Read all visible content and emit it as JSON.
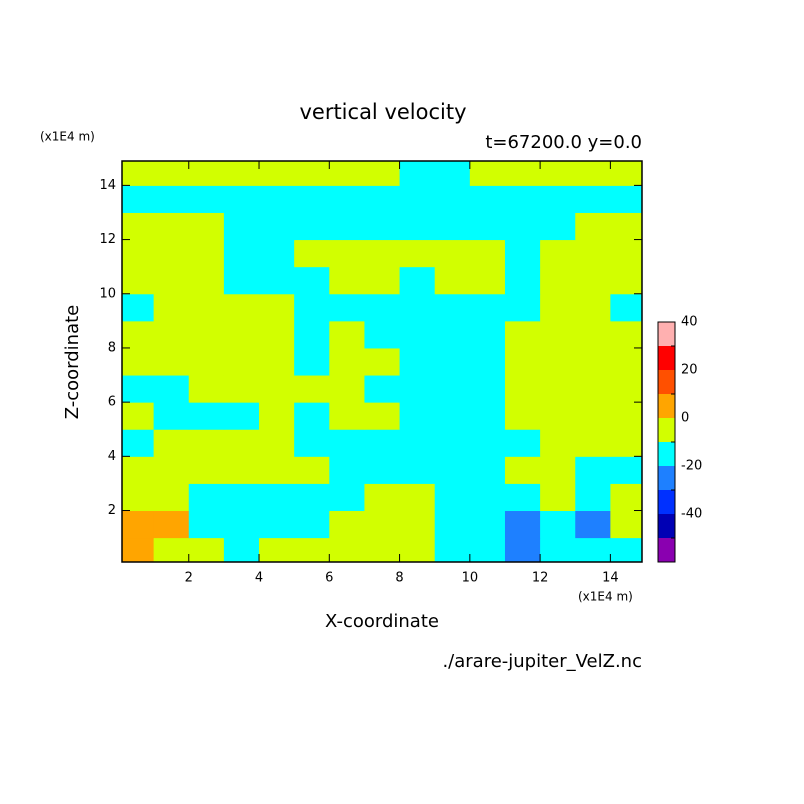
{
  "chart_data": {
    "type": "contour",
    "title": "vertical velocity",
    "subtitle": "t=67200.0 y=0.0",
    "x_label": "X-coordinate",
    "y_label": "Z-coordinate",
    "x_unit": "(x1E4 m)",
    "y_unit": "(x1E4 m)",
    "source": "./arare-jupiter_VelZ.nc",
    "xlim": [
      0.1,
      14.9
    ],
    "ylim": [
      0.1,
      14.9
    ],
    "xticks": [
      2,
      4,
      6,
      8,
      10,
      12,
      14
    ],
    "yticks": [
      2,
      4,
      6,
      8,
      10,
      12,
      14
    ],
    "x": [
      0.5,
      1.5,
      2.5,
      3.5,
      4.5,
      5.5,
      6.5,
      7.5,
      8.5,
      9.5,
      10.5,
      11.5,
      12.5,
      13.5,
      14.5
    ],
    "y": [
      0.5,
      1.5,
      2.5,
      3.5,
      4.5,
      5.5,
      6.5,
      7.5,
      8.5,
      9.5,
      10.5,
      11.5,
      12.5,
      13.5,
      14.5
    ],
    "z": [
      [
        15,
        5,
        5,
        -5,
        5,
        5,
        5,
        5,
        5,
        -5,
        -5,
        -15,
        -5,
        -5,
        -5
      ],
      [
        15,
        15,
        -5,
        -5,
        -5,
        -5,
        5,
        5,
        5,
        -5,
        -5,
        -15,
        -5,
        -15,
        5
      ],
      [
        5,
        5,
        -5,
        -5,
        -5,
        -5,
        -5,
        5,
        5,
        -5,
        -5,
        -5,
        5,
        -5,
        5
      ],
      [
        5,
        5,
        5,
        5,
        5,
        5,
        -5,
        -5,
        -5,
        -5,
        -5,
        5,
        5,
        -5,
        -5
      ],
      [
        -5,
        5,
        5,
        5,
        5,
        -5,
        -5,
        -5,
        -5,
        -5,
        -5,
        -5,
        5,
        5,
        5
      ],
      [
        5,
        -5,
        -5,
        -5,
        5,
        -5,
        5,
        5,
        -5,
        -5,
        -5,
        5,
        5,
        5,
        5
      ],
      [
        -5,
        -5,
        5,
        5,
        5,
        5,
        5,
        -5,
        -5,
        -5,
        -5,
        5,
        5,
        5,
        5
      ],
      [
        5,
        5,
        5,
        5,
        5,
        -5,
        5,
        5,
        -5,
        -5,
        -5,
        5,
        5,
        5,
        5
      ],
      [
        5,
        5,
        5,
        5,
        5,
        -5,
        5,
        -5,
        -5,
        -5,
        -5,
        5,
        5,
        5,
        5
      ],
      [
        -5,
        5,
        5,
        5,
        5,
        -5,
        -5,
        -5,
        -5,
        -5,
        -5,
        -5,
        5,
        5,
        -5
      ],
      [
        5,
        5,
        5,
        -5,
        -5,
        -5,
        5,
        5,
        -5,
        5,
        5,
        -5,
        5,
        5,
        5
      ],
      [
        5,
        5,
        5,
        -5,
        -5,
        5,
        5,
        5,
        5,
        5,
        5,
        -5,
        5,
        5,
        5
      ],
      [
        5,
        5,
        5,
        -5,
        -5,
        -5,
        -5,
        -5,
        -5,
        -5,
        -5,
        -5,
        -5,
        5,
        5
      ],
      [
        -5,
        -5,
        -5,
        -5,
        -5,
        -5,
        -5,
        -5,
        -5,
        -5,
        -5,
        -5,
        -5,
        -5,
        -5
      ],
      [
        5,
        5,
        5,
        5,
        5,
        5,
        5,
        5,
        -5,
        -5,
        5,
        5,
        5,
        5,
        5
      ]
    ],
    "levels": [
      -50,
      -40,
      -30,
      -20,
      -10,
      0,
      10,
      20,
      30,
      40,
      50
    ],
    "colors": [
      "#8a00b0",
      "#0000b4",
      "#0030ff",
      "#1e80ff",
      "#00ffff",
      "#d2ff00",
      "#ffa500",
      "#ff5000",
      "#ff0000",
      "#ffb0b0"
    ],
    "colorbar_ticks": [
      -40,
      -20,
      0,
      20,
      40
    ]
  }
}
